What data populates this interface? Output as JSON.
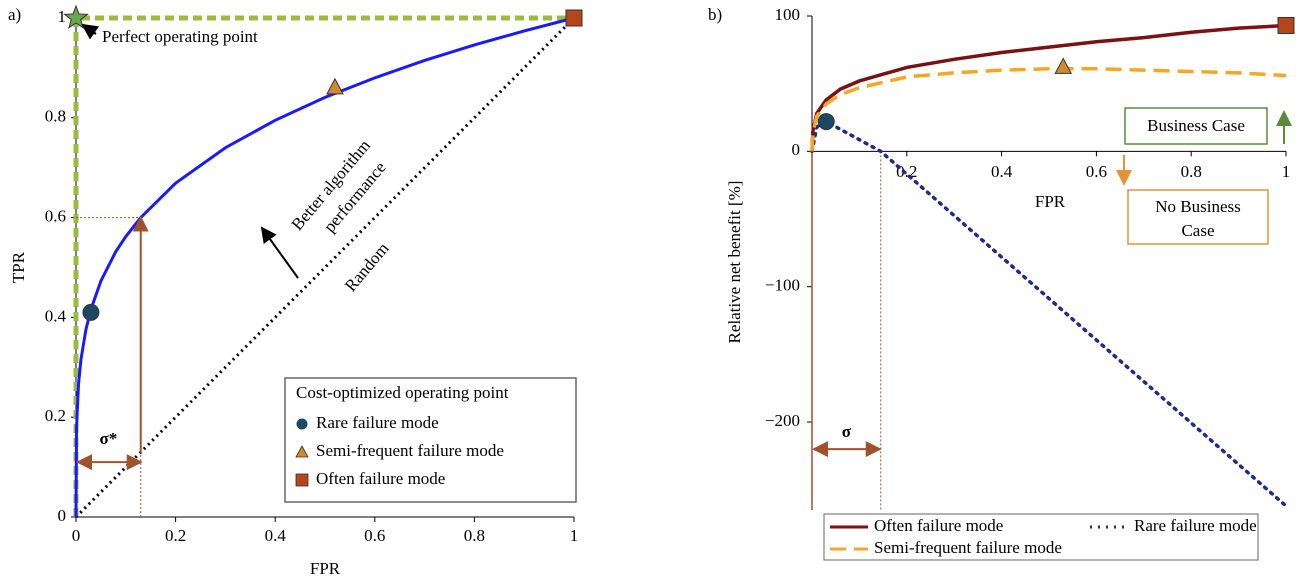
{
  "chart_data": [
    {
      "type": "line",
      "panel_label": "a)",
      "xlabel": "FPR",
      "ylabel": "TPR",
      "xlim": [
        0,
        1
      ],
      "ylim": [
        0,
        1
      ],
      "xticks": [
        0,
        0.2,
        0.4,
        0.6,
        0.8,
        1
      ],
      "yticks": [
        0,
        0.2,
        0.4,
        0.6,
        0.8,
        1
      ],
      "roc_curve": {
        "color": "#1a1aff",
        "x": [
          0,
          0.001,
          0.005,
          0.01,
          0.02,
          0.03,
          0.05,
          0.08,
          0.1,
          0.13,
          0.2,
          0.3,
          0.4,
          0.5,
          0.6,
          0.7,
          0.8,
          0.9,
          1
        ],
        "values": [
          0,
          0.178,
          0.266,
          0.316,
          0.376,
          0.416,
          0.473,
          0.532,
          0.562,
          0.6,
          0.669,
          0.74,
          0.795,
          0.841,
          0.88,
          0.915,
          0.946,
          0.974,
          1
        ]
      },
      "random_line": {
        "label": "Random",
        "color": "#000000",
        "x": [
          0,
          1
        ],
        "values": [
          0,
          1
        ]
      },
      "perfect_path": {
        "color": "#9bbb3b",
        "x": [
          0,
          0,
          1
        ],
        "values": [
          0,
          1,
          1
        ]
      },
      "perfect_point": {
        "label": "Perfect operating point",
        "x": 0,
        "y": 1,
        "color": "#6aa84f"
      },
      "better_label": [
        "Better algorithm",
        "performance"
      ],
      "sigma": {
        "label": "σ*",
        "fpr": 0.13,
        "tpr": 0.6,
        "arrow_tpr": 0.11,
        "color": "#a0522d"
      },
      "legend_title": "Cost-optimized operating point",
      "points": [
        {
          "name": "Rare failure mode",
          "marker": "circle",
          "x": 0.03,
          "y": 0.41,
          "color": "#1b4965"
        },
        {
          "name": "Semi-frequent failure mode",
          "marker": "triangle",
          "x": 0.52,
          "y": 0.86,
          "color": "#d08a30"
        },
        {
          "name": "Often failure mode",
          "marker": "square",
          "x": 1,
          "y": 1,
          "color": "#b5451b"
        }
      ]
    },
    {
      "type": "line",
      "panel_label": "b)",
      "xlabel": "FPR",
      "ylabel": "Relative net benefit [%]",
      "xlim": [
        0,
        1
      ],
      "ylim": [
        -265,
        100
      ],
      "xticks": [
        0.2,
        0.4,
        0.6,
        0.8,
        1
      ],
      "yticks": [
        {
          "value": -200,
          "label": "−200"
        },
        {
          "value": -100,
          "label": "−100"
        },
        0,
        100
      ],
      "series": [
        {
          "name": "Often failure mode",
          "color": "#7b1113",
          "style": "solid",
          "x": [
            0,
            0.002,
            0.01,
            0.03,
            0.06,
            0.1,
            0.2,
            0.3,
            0.4,
            0.5,
            0.6,
            0.7,
            0.8,
            0.9,
            1
          ],
          "values": [
            0,
            15,
            28,
            38,
            46,
            52,
            62,
            68,
            73,
            77,
            81,
            84,
            88,
            91,
            93
          ]
        },
        {
          "name": "Rare failure mode",
          "color": "#1f2a8a",
          "style": "dotted",
          "x": [
            0,
            0.01,
            0.03,
            0.145,
            1
          ],
          "values": [
            0,
            18,
            22,
            0,
            -262
          ]
        },
        {
          "name": "Semi-frequent failure mode",
          "color": "#f5a623",
          "style": "dashed",
          "x": [
            0,
            0.002,
            0.01,
            0.03,
            0.06,
            0.1,
            0.2,
            0.3,
            0.4,
            0.5,
            0.6,
            0.7,
            0.8,
            0.9,
            1
          ],
          "values": [
            0,
            14,
            26,
            35,
            42,
            47,
            55,
            58,
            60,
            61,
            61,
            60,
            59,
            58,
            56
          ]
        }
      ],
      "points": [
        {
          "marker": "circle",
          "x": 0.03,
          "y": 22,
          "color": "#1b4965"
        },
        {
          "marker": "triangle",
          "x": 0.53,
          "y": 62,
          "color": "#d08a30"
        },
        {
          "marker": "square",
          "x": 1,
          "y": 93,
          "color": "#b5451b"
        }
      ],
      "sigma": {
        "label": "σ",
        "fpr": 0.145,
        "arrow_y": -220,
        "color": "#a0522d"
      },
      "business_case": {
        "label": "Business Case",
        "color": "#5b8c3a"
      },
      "no_business_case": {
        "label": [
          "No Business",
          "Case"
        ],
        "color": "#e69138"
      }
    }
  ]
}
